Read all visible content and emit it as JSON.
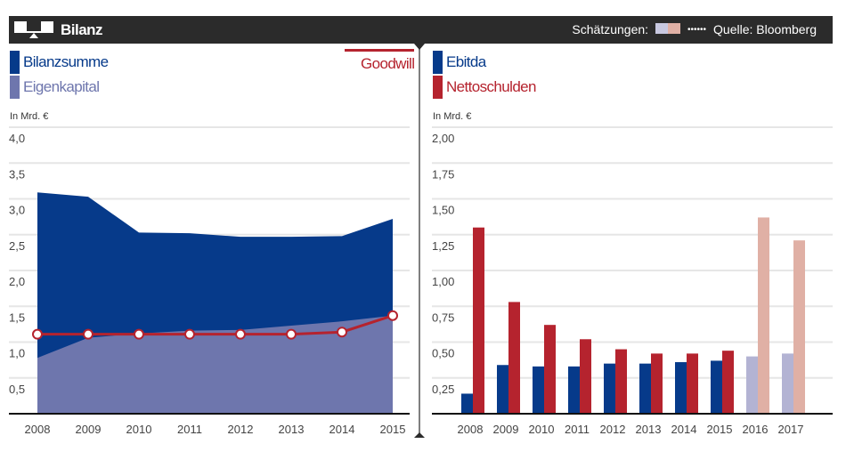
{
  "header": {
    "title": "Bilanz",
    "estimates_label": "Schätzungen:",
    "dots": "••••••",
    "source": "Quelle: Bloomberg",
    "icon": "balance-scale-icon"
  },
  "colors": {
    "dark_blue": "#063a8a",
    "light_blue": "#6e76ad",
    "red": "#b5232e",
    "est_blue": "#b3b3d3",
    "est_red": "#e0b0a5",
    "header": "#2b2b2b"
  },
  "chart_data": [
    {
      "type": "area",
      "legend": [
        "Bilanzsumme",
        "Eigenkapital",
        "Goodwill"
      ],
      "ylabel": "In Mrd. €",
      "categories": [
        "2008",
        "2009",
        "2010",
        "2011",
        "2012",
        "2013",
        "2014",
        "2015"
      ],
      "ylim": [
        0,
        4.0
      ],
      "yticks": [
        "0,5",
        "1,0",
        "1,5",
        "2,0",
        "2,5",
        "3,0",
        "3,5",
        "4,0"
      ],
      "grid": true,
      "series": [
        {
          "name": "Bilanzsumme",
          "type": "area",
          "values": [
            3.09,
            3.03,
            2.53,
            2.52,
            2.47,
            2.47,
            2.48,
            2.72
          ]
        },
        {
          "name": "Eigenkapital",
          "type": "area",
          "values": [
            0.78,
            1.06,
            1.12,
            1.16,
            1.17,
            1.23,
            1.29,
            1.37
          ]
        },
        {
          "name": "Goodwill",
          "type": "line",
          "values": [
            1.11,
            1.11,
            1.11,
            1.11,
            1.11,
            1.11,
            1.14,
            1.37
          ]
        }
      ]
    },
    {
      "type": "bar",
      "legend": [
        "Ebitda",
        "Nettoschulden"
      ],
      "ylabel": "In Mrd. €",
      "categories": [
        "2008",
        "2009",
        "2010",
        "2011",
        "2012",
        "2013",
        "2014",
        "2015",
        "2016",
        "2017"
      ],
      "estimates": [
        "2016",
        "2017"
      ],
      "ylim": [
        0,
        2.0
      ],
      "yticks": [
        "0,25",
        "0,50",
        "0,75",
        "1,00",
        "1,25",
        "1,50",
        "1,75",
        "2,00"
      ],
      "grid": true,
      "series": [
        {
          "name": "Ebitda",
          "values": [
            0.14,
            0.34,
            0.33,
            0.33,
            0.35,
            0.35,
            0.36,
            0.37,
            0.4,
            0.42
          ]
        },
        {
          "name": "Nettoschulden",
          "values": [
            1.3,
            0.78,
            0.62,
            0.52,
            0.45,
            0.42,
            0.42,
            0.44,
            1.37,
            1.21
          ]
        }
      ]
    }
  ]
}
